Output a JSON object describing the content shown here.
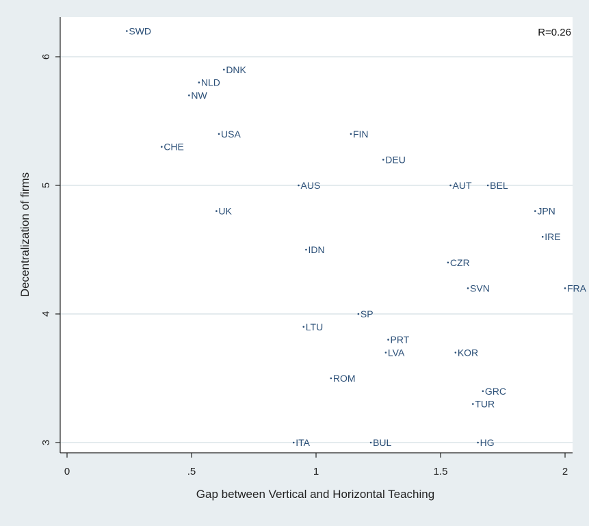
{
  "chart_data": {
    "type": "scatter",
    "xlabel": "Gap between Vertical and Horizontal Teaching",
    "ylabel": "Decentralization of firms",
    "xlim": [
      0,
      2
    ],
    "ylim": [
      3,
      6
    ],
    "x_ticks": [
      {
        "value": 0,
        "label": "0"
      },
      {
        "value": 0.5,
        "label": ".5"
      },
      {
        "value": 1,
        "label": "1"
      },
      {
        "value": 1.5,
        "label": "1.5"
      },
      {
        "value": 2,
        "label": "2"
      }
    ],
    "y_ticks": [
      {
        "value": 3,
        "label": "3"
      },
      {
        "value": 4,
        "label": "4"
      },
      {
        "value": 5,
        "label": "5"
      },
      {
        "value": 6,
        "label": "6"
      }
    ],
    "grid": "horizontal",
    "annotation": "R=0.26",
    "marker_color": "#2b4f77",
    "points": [
      {
        "label": "SWD",
        "x": 0.24,
        "y": 6.2
      },
      {
        "label": "DNK",
        "x": 0.63,
        "y": 5.9
      },
      {
        "label": "NLD",
        "x": 0.53,
        "y": 5.8
      },
      {
        "label": "NW",
        "x": 0.49,
        "y": 5.7
      },
      {
        "label": "USA",
        "x": 0.61,
        "y": 5.4
      },
      {
        "label": "FIN",
        "x": 1.14,
        "y": 5.4
      },
      {
        "label": "CHE",
        "x": 0.38,
        "y": 5.3
      },
      {
        "label": "DEU",
        "x": 1.27,
        "y": 5.2
      },
      {
        "label": "AUS",
        "x": 0.93,
        "y": 5.0
      },
      {
        "label": "AUT",
        "x": 1.54,
        "y": 5.0
      },
      {
        "label": "BEL",
        "x": 1.69,
        "y": 5.0
      },
      {
        "label": "UK",
        "x": 0.6,
        "y": 4.8
      },
      {
        "label": "JPN",
        "x": 1.88,
        "y": 4.8
      },
      {
        "label": "IRE",
        "x": 1.91,
        "y": 4.6
      },
      {
        "label": "IDN",
        "x": 0.96,
        "y": 4.5
      },
      {
        "label": "CZR",
        "x": 1.53,
        "y": 4.4
      },
      {
        "label": "SVN",
        "x": 1.61,
        "y": 4.2
      },
      {
        "label": "FRA",
        "x": 2.0,
        "y": 4.2
      },
      {
        "label": "SP",
        "x": 1.17,
        "y": 4.0
      },
      {
        "label": "LTU",
        "x": 0.95,
        "y": 3.9
      },
      {
        "label": "PRT",
        "x": 1.29,
        "y": 3.8
      },
      {
        "label": "LVA",
        "x": 1.28,
        "y": 3.7
      },
      {
        "label": "KOR",
        "x": 1.56,
        "y": 3.7
      },
      {
        "label": "ROM",
        "x": 1.06,
        "y": 3.5
      },
      {
        "label": "GRC",
        "x": 1.67,
        "y": 3.4
      },
      {
        "label": "TUR",
        "x": 1.63,
        "y": 3.3
      },
      {
        "label": "ITA",
        "x": 0.91,
        "y": 3.0
      },
      {
        "label": "BUL",
        "x": 1.22,
        "y": 3.0
      },
      {
        "label": "HG",
        "x": 1.65,
        "y": 3.0
      }
    ]
  }
}
